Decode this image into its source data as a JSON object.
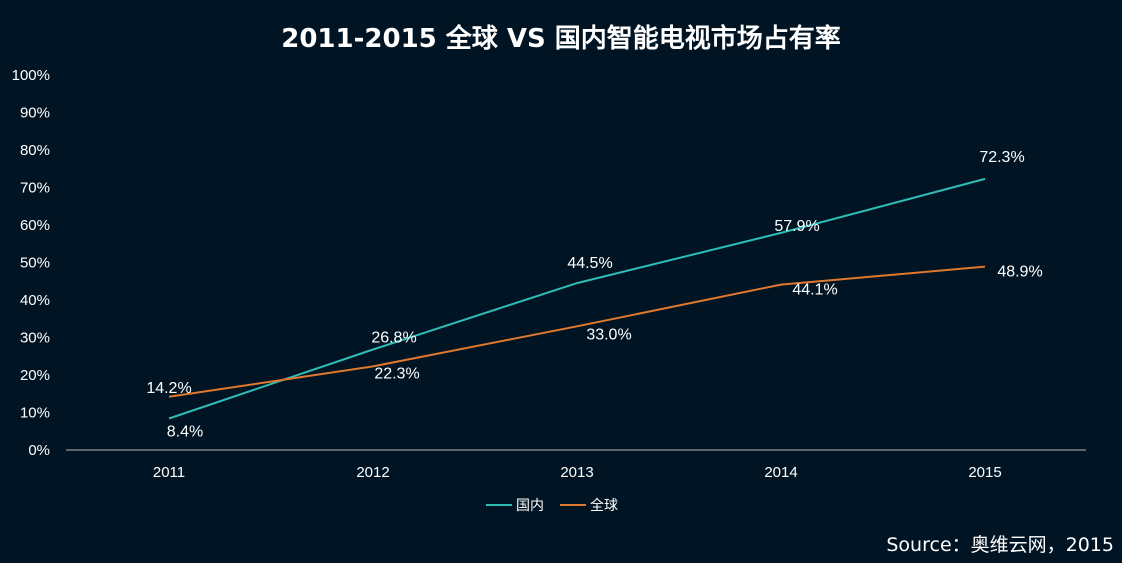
{
  "title": "2011-2015 全球 VS 国内智能电视市场占有率",
  "source": "Source：奥维云网，2015",
  "colors": {
    "background": "#001423",
    "domestic": "#2fbcb4",
    "global": "#e0782e",
    "axis": "#b8b8b8",
    "text": "#ffffff"
  },
  "chart_data": {
    "type": "line",
    "categories": [
      "2011",
      "2012",
      "2013",
      "2014",
      "2015"
    ],
    "ylim": [
      0,
      100
    ],
    "yticks": [
      "0%",
      "10%",
      "20%",
      "30%",
      "40%",
      "50%",
      "60%",
      "70%",
      "80%",
      "90%",
      "100%"
    ],
    "grid": false,
    "legend_position": "bottom-center",
    "series": [
      {
        "name": "国内",
        "color": "#2fbcb4",
        "values": [
          8.4,
          26.8,
          44.5,
          57.9,
          72.3
        ],
        "labels": [
          "8.4%",
          "26.8%",
          "44.5%",
          "57.9%",
          "72.3%"
        ]
      },
      {
        "name": "全球",
        "color": "#e0782e",
        "values": [
          14.2,
          22.3,
          33.0,
          44.1,
          48.9
        ],
        "labels": [
          "14.2%",
          "22.3%",
          "33.0%",
          "44.1%",
          "48.9%"
        ]
      }
    ]
  }
}
